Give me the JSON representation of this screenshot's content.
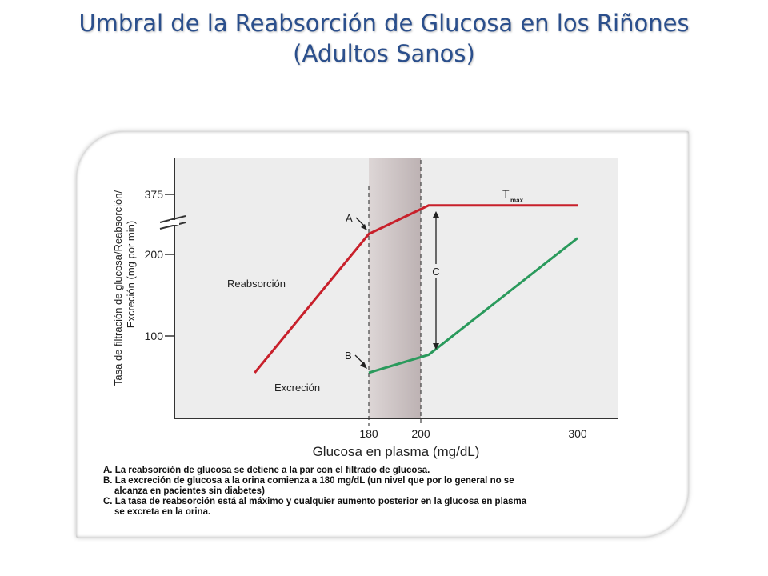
{
  "title": {
    "line1": "Umbral de la Reabsorción de Glucosa en los Riñones",
    "line2": "(Adultos Sanos)"
  },
  "chart_data": {
    "type": "line",
    "xlabel": "Glucosa en plasma (mg/dL)",
    "ylabel_line1": "Tasa de filtración de glucosa/Reabsorción/",
    "ylabel_line2": "Excreción (mg por min)",
    "x_ticks": [
      180,
      200,
      300
    ],
    "y_ticks": [
      100,
      200,
      375
    ],
    "x_range": [
      100,
      320
    ],
    "y_range": [
      0,
      400
    ],
    "shaded_range": [
      180,
      200
    ],
    "series": [
      {
        "name": "Reabsorción",
        "x": [
          110,
          180,
          205,
          300
        ],
        "y": [
          55,
          225,
          260,
          260
        ],
        "color": "#c8202b"
      },
      {
        "name": "Excreción",
        "x": [
          110,
          180,
          205,
          300
        ],
        "y": [
          55,
          55,
          77,
          220
        ],
        "color": "#2a9a5c"
      }
    ],
    "annotations": {
      "A": "A",
      "B": "B",
      "C": "C",
      "tmax_main": "T",
      "tmax_sub": "max"
    },
    "colors": {
      "reabsorption": "#c8202b",
      "excretion_low": "#e6dc5a",
      "excretion": "#2a9a5c",
      "shade": "#c9bfc0",
      "plot_bg": "#ededed"
    }
  },
  "notes": {
    "a": "A. La reabsorción de glucosa se detiene a la par con el filtrado de glucosa.",
    "b1": "B. La excreción de glucosa a la orina comienza a 180 mg/dL (un nivel que por lo general no se",
    "b2": "alcanza en pacientes sin diabetes)",
    "c1": "C. La tasa de reabsorción está al máximo y cualquier aumento posterior en la glucosa en plasma",
    "c2": "se excreta en la orina."
  }
}
